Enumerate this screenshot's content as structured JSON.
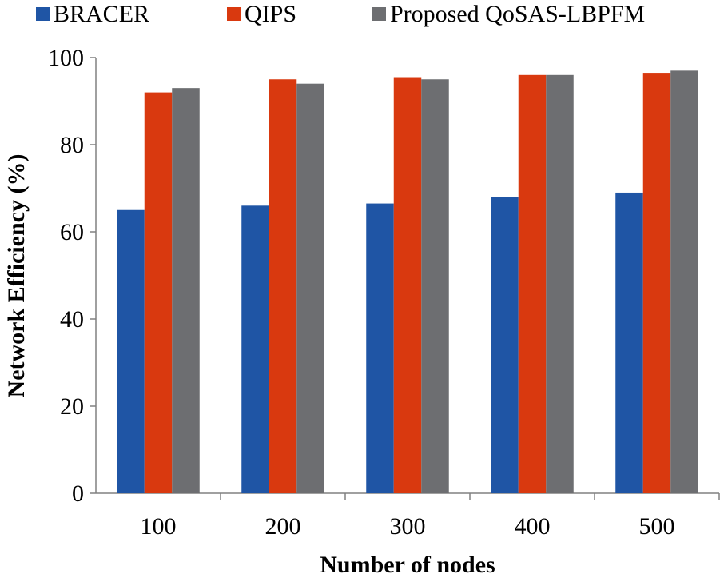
{
  "chart_data": {
    "type": "bar",
    "title": "",
    "xlabel": "Number of nodes",
    "ylabel": "Network Efficiency (%)",
    "categories": [
      "100",
      "200",
      "300",
      "400",
      "500"
    ],
    "ylim": [
      0,
      100
    ],
    "yticks": [
      0,
      20,
      40,
      60,
      80,
      100
    ],
    "grid": false,
    "legend_position": "top",
    "series": [
      {
        "name": "BRACER",
        "color": "#1f55a5",
        "values": [
          65,
          66,
          66.5,
          68,
          69
        ]
      },
      {
        "name": "QIPS",
        "color": "#d9390f",
        "values": [
          92,
          95,
          95.5,
          96,
          96.5
        ]
      },
      {
        "name": "Proposed QoSAS-LBPFM",
        "color": "#6d6e71",
        "values": [
          93,
          94,
          95,
          96,
          97
        ]
      }
    ]
  }
}
